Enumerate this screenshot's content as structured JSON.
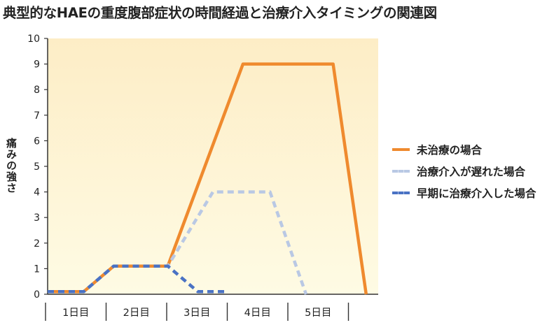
{
  "chart_data": {
    "type": "line",
    "title": "典型的なHAEの重度腹部症状の時間経過と治療介入タイミングの関連図",
    "ylabel": "痛みの強さ",
    "xlabel": "",
    "ylim": [
      0,
      10
    ],
    "yticks": [
      "0",
      "1",
      "2",
      "3",
      "4",
      "5",
      "6",
      "7",
      "8",
      "9",
      "10"
    ],
    "categories": [
      "1日目",
      "2日目",
      "3日目",
      "4日目",
      "5日目"
    ],
    "xlim": [
      0,
      5.5
    ],
    "grid": false,
    "background": "light-yellow gradient",
    "legend_position": "right",
    "series": [
      {
        "name": "未治療の場合",
        "color": "#ef8a2e",
        "style": "solid",
        "points": [
          [
            0,
            0.1
          ],
          [
            0.6,
            0.1
          ],
          [
            1.1,
            1.1
          ],
          [
            2.0,
            1.1
          ],
          [
            3.25,
            9.0
          ],
          [
            4.75,
            9.0
          ],
          [
            5.3,
            0
          ]
        ]
      },
      {
        "name": "治療介入が遅れた場合",
        "color": "#b9c8e4",
        "style": "dashed",
        "points": [
          [
            0,
            0.1
          ],
          [
            0.6,
            0.1
          ],
          [
            1.1,
            1.1
          ],
          [
            2.0,
            1.1
          ],
          [
            2.75,
            4.0
          ],
          [
            3.7,
            4.0
          ],
          [
            4.3,
            0
          ]
        ]
      },
      {
        "name": "早期に治療介入した場合",
        "color": "#4a72c4",
        "style": "dashed",
        "points": [
          [
            0,
            0.1
          ],
          [
            0.6,
            0.1
          ],
          [
            1.1,
            1.1
          ],
          [
            2.0,
            1.1
          ],
          [
            2.5,
            0.1
          ],
          [
            3.0,
            0.1
          ]
        ]
      }
    ]
  }
}
